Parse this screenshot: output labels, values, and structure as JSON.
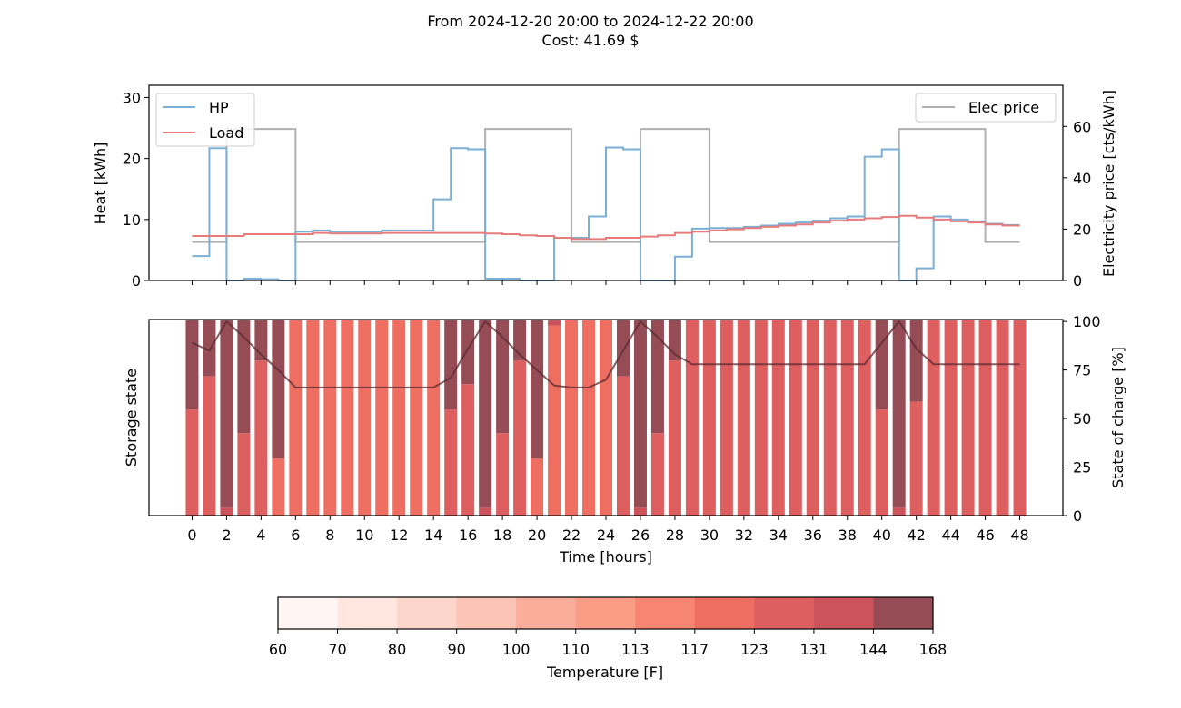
{
  "figure": {
    "title_line1": "From 2024-12-20 20:00 to 2024-12-22 20:00",
    "title_line2": "Cost: 41.69 $"
  },
  "colors": {
    "hp": "#7bafd4",
    "load": "#e67c7c",
    "price": "#b0b0b0",
    "soc": "#5a2a30",
    "colorbar": [
      "#fff5f2",
      "#ffe7e0",
      "#fdd6cb",
      "#fcc4b4",
      "#fbad9b",
      "#f99d87",
      "#f68572",
      "#ef6e62",
      "#de5f5f",
      "#cc535b",
      "#954c55"
    ]
  },
  "chart_data": [
    {
      "type": "line",
      "subtype": "step",
      "ylabel": "Heat [kWh]",
      "y2label": "Electricity price [cts/kWh]",
      "ylim": [
        0,
        32
      ],
      "y2lim": [
        0,
        76
      ],
      "yticks": [
        0,
        10,
        20,
        30
      ],
      "y2ticks": [
        0,
        20,
        40,
        60
      ],
      "xlim": [
        -2.5,
        50.5
      ],
      "legend_left": "upper-left",
      "legend_right": "upper-right",
      "grid": false,
      "series": [
        {
          "name": "HP",
          "axis": "left",
          "x": [
            0,
            1,
            2,
            3,
            4,
            5,
            6,
            7,
            8,
            9,
            10,
            11,
            12,
            13,
            14,
            15,
            16,
            17,
            18,
            19,
            20,
            21,
            22,
            23,
            24,
            25,
            26,
            27,
            28,
            29,
            30,
            31,
            32,
            33,
            34,
            35,
            36,
            37,
            38,
            39,
            40,
            41,
            42,
            43,
            44,
            45,
            46,
            47,
            48
          ],
          "values": [
            4.0,
            21.7,
            0.0,
            0.3,
            0.2,
            0.0,
            8.0,
            8.2,
            8.0,
            8.0,
            8.0,
            8.2,
            8.2,
            8.2,
            13.3,
            21.7,
            21.5,
            0.3,
            0.3,
            0.0,
            0.0,
            7.0,
            7.0,
            10.5,
            21.8,
            21.5,
            0.0,
            0.0,
            3.9,
            8.5,
            8.6,
            8.6,
            8.8,
            9.0,
            9.3,
            9.5,
            9.8,
            10.2,
            10.5,
            20.3,
            21.5,
            0.0,
            2.0,
            10.5,
            10.0,
            9.7,
            9.3,
            9.1,
            9.1
          ]
        },
        {
          "name": "Load",
          "axis": "left",
          "x": [
            0,
            1,
            2,
            3,
            4,
            5,
            6,
            7,
            8,
            9,
            10,
            11,
            12,
            13,
            14,
            15,
            16,
            17,
            18,
            19,
            20,
            21,
            22,
            23,
            24,
            25,
            26,
            27,
            28,
            29,
            30,
            31,
            32,
            33,
            34,
            35,
            36,
            37,
            38,
            39,
            40,
            41,
            42,
            43,
            44,
            45,
            46,
            47
          ],
          "values": [
            7.3,
            7.3,
            7.3,
            7.6,
            7.6,
            7.6,
            7.6,
            7.8,
            7.7,
            7.7,
            7.7,
            7.8,
            7.8,
            7.8,
            7.8,
            7.8,
            7.8,
            7.7,
            7.6,
            7.4,
            7.3,
            7.0,
            6.8,
            6.8,
            7.0,
            7.0,
            7.2,
            7.4,
            7.8,
            8.0,
            8.2,
            8.4,
            8.6,
            8.8,
            9.0,
            9.2,
            9.5,
            9.8,
            10.0,
            10.2,
            10.4,
            10.6,
            10.3,
            10.0,
            9.7,
            9.5,
            9.2,
            9.0
          ]
        },
        {
          "name": "Elec price",
          "axis": "right",
          "x": [
            0,
            1,
            2,
            3,
            4,
            5,
            6,
            7,
            8,
            9,
            10,
            11,
            12,
            13,
            14,
            15,
            16,
            17,
            18,
            19,
            20,
            21,
            22,
            23,
            24,
            25,
            26,
            27,
            28,
            29,
            30,
            31,
            32,
            33,
            34,
            35,
            36,
            37,
            38,
            39,
            40,
            41,
            42,
            43,
            44,
            45,
            46,
            47
          ],
          "values": [
            15,
            15,
            59,
            59,
            59,
            59,
            15,
            15,
            15,
            15,
            15,
            15,
            15,
            15,
            15,
            15,
            15,
            59,
            59,
            59,
            59,
            59,
            15,
            15,
            15,
            15,
            59,
            59,
            59,
            59,
            15,
            15,
            15,
            15,
            15,
            15,
            15,
            15,
            15,
            15,
            15,
            59,
            59,
            59,
            59,
            59,
            15,
            15
          ]
        }
      ]
    },
    {
      "type": "bar",
      "subtype": "stacked-storage",
      "ylabel": "Storage state",
      "y2label": "State of charge [%]",
      "xlabel": "Time [hours]",
      "y2lim": [
        0,
        101
      ],
      "y2ticks": [
        0,
        25,
        50,
        75,
        100
      ],
      "xticks": [
        0,
        2,
        4,
        6,
        8,
        10,
        12,
        14,
        16,
        18,
        20,
        22,
        24,
        26,
        28,
        30,
        32,
        34,
        36,
        38,
        40,
        42,
        44,
        46,
        48
      ],
      "xlim": [
        -2.5,
        50.5
      ],
      "hours": [
        0,
        1,
        2,
        3,
        4,
        5,
        6,
        7,
        8,
        9,
        10,
        11,
        12,
        13,
        14,
        15,
        16,
        17,
        18,
        19,
        20,
        21,
        22,
        23,
        24,
        25,
        26,
        27,
        28,
        29,
        30,
        31,
        32,
        33,
        34,
        35,
        36,
        37,
        38,
        39,
        40,
        41,
        42,
        43,
        44,
        45,
        46,
        47,
        48
      ],
      "lower_fraction": [
        0.54,
        0.71,
        0.04,
        0.42,
        0.79,
        0.29,
        1,
        1,
        1,
        1,
        1,
        1,
        1,
        1,
        1,
        0.54,
        0.67,
        0.04,
        0.42,
        0.79,
        0.29,
        0.97,
        1,
        1,
        1,
        0.71,
        0.04,
        0.42,
        0.79,
        1,
        1,
        1,
        1,
        1,
        1,
        1,
        1,
        1,
        1,
        1,
        0.54,
        0.04,
        0.58,
        1,
        1,
        1,
        1,
        1,
        1
      ],
      "lower_temp_index": [
        8,
        8,
        9,
        8,
        8,
        7,
        7,
        7,
        7,
        7,
        7,
        7,
        7,
        7,
        7,
        8,
        8,
        9,
        8,
        8,
        7,
        7,
        7,
        7,
        7,
        8,
        9,
        8,
        8,
        8,
        8,
        8,
        8,
        8,
        8,
        8,
        8,
        8,
        8,
        8,
        8,
        9,
        8,
        8,
        8,
        8,
        8,
        8,
        8
      ],
      "upper_temp_index": [
        10,
        10,
        10,
        10,
        10,
        10,
        7,
        7,
        7,
        7,
        7,
        7,
        7,
        7,
        7,
        10,
        10,
        10,
        10,
        10,
        10,
        9,
        7,
        7,
        7,
        10,
        10,
        10,
        10,
        8,
        8,
        8,
        8,
        8,
        8,
        8,
        8,
        8,
        8,
        8,
        10,
        10,
        10,
        8,
        8,
        8,
        8,
        8,
        8
      ],
      "soc": [
        89,
        85,
        100,
        92,
        83,
        75,
        66,
        66,
        66,
        66,
        66,
        66,
        66,
        66,
        66,
        71,
        86,
        100,
        92,
        83,
        75,
        67,
        66,
        66,
        70,
        85,
        100,
        92,
        83,
        78,
        78,
        78,
        78,
        78,
        78,
        78,
        78,
        78,
        78,
        78,
        89,
        100,
        86,
        78,
        78,
        78,
        78,
        78,
        78
      ]
    },
    {
      "type": "colorbar",
      "xlabel": "Temperature [F]",
      "ticks": [
        "60",
        "70",
        "80",
        "90",
        "100",
        "110",
        "113",
        "117",
        "123",
        "131",
        "144",
        "168"
      ]
    }
  ]
}
